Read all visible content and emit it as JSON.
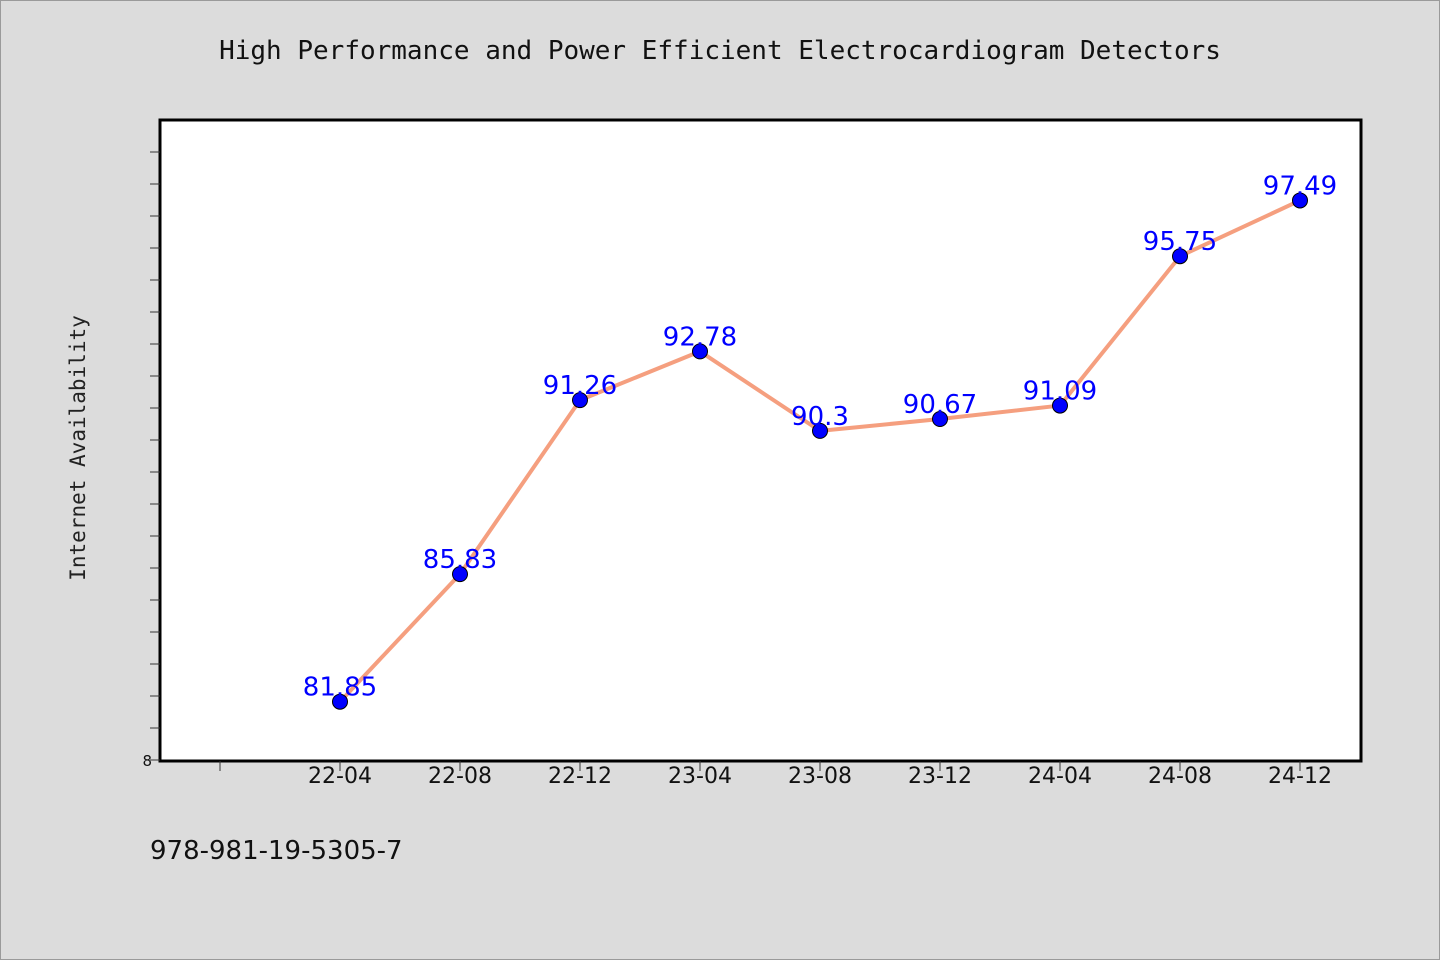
{
  "chart_data": {
    "type": "line",
    "title": "High Performance and Power Efficient Electrocardiogram Detectors",
    "ylabel": "Internet Availability",
    "xlabel": "",
    "categories": [
      "22-04",
      "22-08",
      "22-12",
      "23-04",
      "23-08",
      "23-12",
      "24-04",
      "24-08",
      "24-12"
    ],
    "series": [
      {
        "values": [
          81.85,
          85.83,
          91.26,
          92.78,
          90.3,
          90.67,
          91.09,
          95.75,
          97.49
        ],
        "labels": [
          "81.85",
          "85.83",
          "91.26",
          "92.78",
          "90.3",
          "90.67",
          "91.09",
          "95.75",
          "97.49"
        ]
      }
    ],
    "y_tick_label": "8",
    "ylim": [
      80.0,
      100.0
    ],
    "grid": false,
    "line_color": "#f59f7f",
    "marker_color": "#0000ff",
    "label_color": "#0000ff"
  },
  "footnote": "978-981-19-5305-7"
}
